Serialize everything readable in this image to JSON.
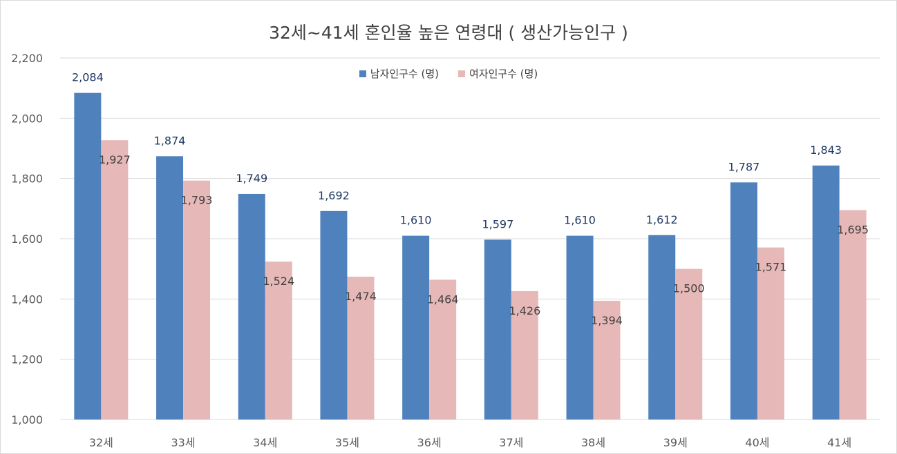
{
  "chart_data": {
    "type": "bar",
    "title": "32세~41세 혼인율 높은 연령대 ( 생산가능인구 )",
    "categories": [
      "32세",
      "33세",
      "34세",
      "35세",
      "36세",
      "37세",
      "38세",
      "39세",
      "40세",
      "41세"
    ],
    "series": [
      {
        "name": "남자인구수 (명)",
        "color": "#4f81bd",
        "label_color": "#1f3864",
        "values": [
          2084,
          1874,
          1749,
          1692,
          1610,
          1597,
          1610,
          1612,
          1787,
          1843
        ]
      },
      {
        "name": "여자인구수 (명)",
        "color": "#e6b9b8",
        "label_color": "#404040",
        "values": [
          1927,
          1793,
          1524,
          1474,
          1464,
          1426,
          1394,
          1500,
          1571,
          1695
        ]
      }
    ],
    "ylim": [
      1000,
      2200
    ],
    "yticks": [
      "1,000",
      "1,200",
      "1,400",
      "1,600",
      "1,800",
      "2,000",
      "2,200"
    ],
    "ytick_values": [
      1000,
      1200,
      1400,
      1600,
      1800,
      2000,
      2200
    ],
    "grid": true,
    "legend_position": "top-center"
  }
}
